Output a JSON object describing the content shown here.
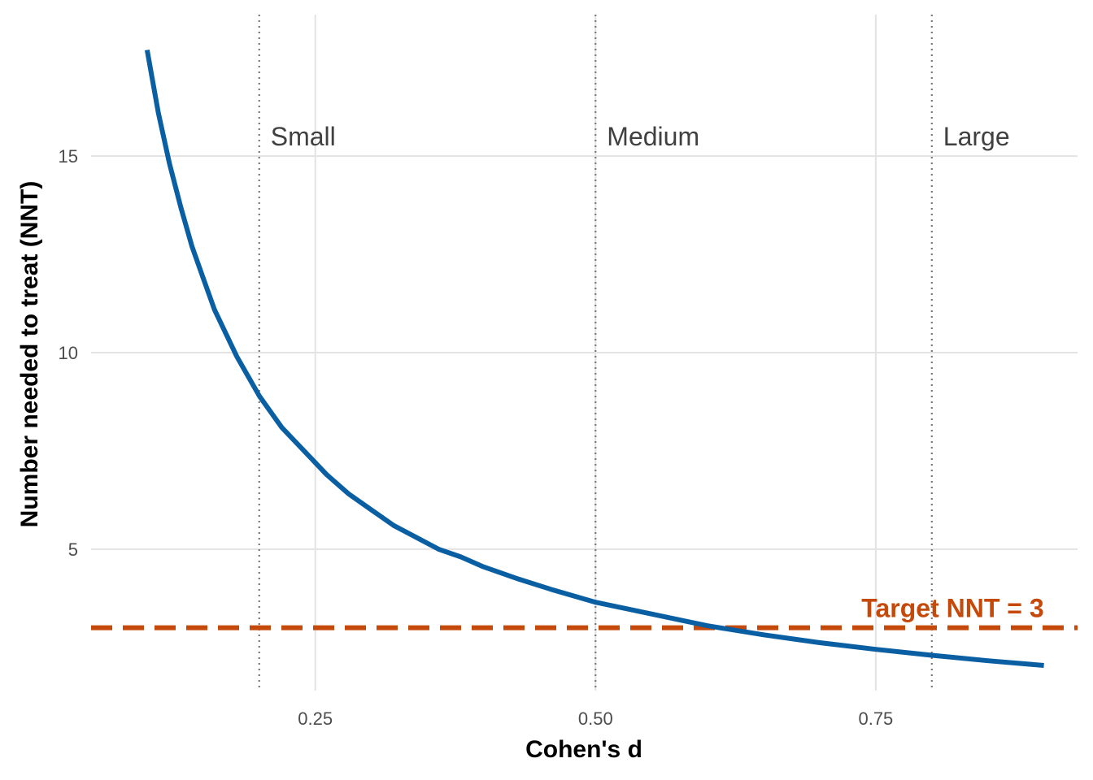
{
  "chart_data": {
    "type": "line",
    "title": "",
    "xlabel": "Cohen's d",
    "ylabel": "Number needed to treat (NNT)",
    "xlim": [
      0.05,
      0.93
    ],
    "ylim": [
      1.4,
      18.6
    ],
    "x_ticks": [
      {
        "value": 0.25,
        "label": "0.25"
      },
      {
        "value": 0.5,
        "label": "0.50"
      },
      {
        "value": 0.75,
        "label": "0.75"
      }
    ],
    "y_ticks": [
      {
        "value": 5,
        "label": "5"
      },
      {
        "value": 10,
        "label": "10"
      },
      {
        "value": 15,
        "label": "15"
      }
    ],
    "grid": true,
    "series": [
      {
        "color": "#0a5fa3",
        "points": [
          [
            0.1,
            17.7
          ],
          [
            0.11,
            16.1
          ],
          [
            0.12,
            14.8
          ],
          [
            0.13,
            13.7
          ],
          [
            0.14,
            12.7
          ],
          [
            0.15,
            11.9
          ],
          [
            0.16,
            11.1
          ],
          [
            0.17,
            10.5
          ],
          [
            0.18,
            9.9
          ],
          [
            0.19,
            9.4
          ],
          [
            0.2,
            8.9
          ],
          [
            0.22,
            8.1
          ],
          [
            0.24,
            7.5
          ],
          [
            0.26,
            6.9
          ],
          [
            0.28,
            6.4
          ],
          [
            0.3,
            6.0
          ],
          [
            0.32,
            5.6
          ],
          [
            0.34,
            5.3
          ],
          [
            0.36,
            5.0
          ],
          [
            0.38,
            4.8
          ],
          [
            0.4,
            4.55
          ],
          [
            0.43,
            4.25
          ],
          [
            0.46,
            3.98
          ],
          [
            0.5,
            3.65
          ],
          [
            0.55,
            3.35
          ],
          [
            0.6,
            3.05
          ],
          [
            0.65,
            2.82
          ],
          [
            0.7,
            2.62
          ],
          [
            0.75,
            2.45
          ],
          [
            0.8,
            2.3
          ],
          [
            0.85,
            2.16
          ],
          [
            0.9,
            2.04
          ]
        ]
      }
    ],
    "reference_lines": [
      {
        "x": 0.2,
        "label": "Small"
      },
      {
        "x": 0.5,
        "label": "Medium"
      },
      {
        "x": 0.8,
        "label": "Large"
      }
    ],
    "reference_label_y": 15.5,
    "target": {
      "y": 3,
      "label": "Target NNT = 3",
      "color": "#c5490a",
      "label_x": 0.9
    }
  }
}
